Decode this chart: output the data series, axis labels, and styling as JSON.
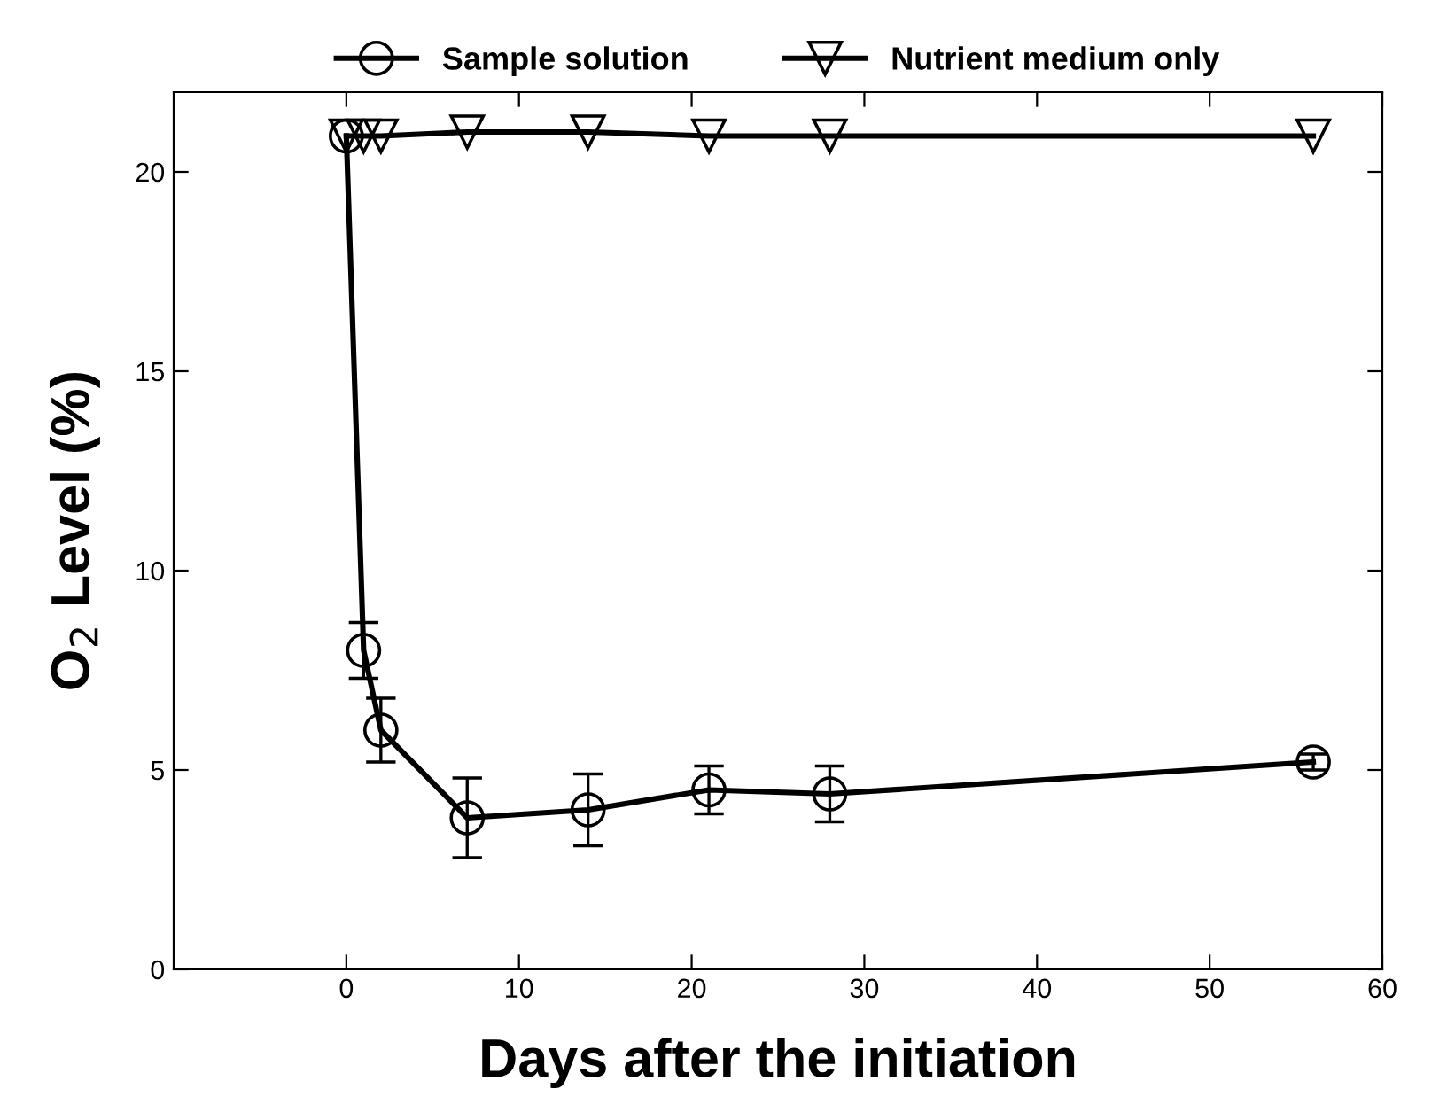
{
  "chart_data": {
    "type": "line",
    "xlabel": "Days after the initiation",
    "ylabel": "O$_{2}$ Level (%)",
    "xlim": [
      -10,
      60
    ],
    "xticks": [
      0,
      10,
      20,
      30,
      40,
      50,
      60
    ],
    "ylim": [
      0,
      22
    ],
    "yticks": [
      0,
      5,
      10,
      15,
      20
    ],
    "grid": false,
    "legend": "top",
    "line_style": "solid",
    "series": [
      {
        "name": "Sample solution",
        "color": "#000000",
        "marker": "circle",
        "x": [
          0,
          1,
          2,
          7,
          14,
          21,
          28,
          56
        ],
        "values": [
          20.9,
          8.0,
          6.0,
          3.8,
          4.0,
          4.5,
          4.4,
          5.2
        ],
        "errors": [
          null,
          0.7,
          0.8,
          1.0,
          0.9,
          0.6,
          0.7,
          0.2
        ]
      },
      {
        "name": "Nutrient medium only",
        "color": "#000000",
        "marker": "triangle",
        "x": [
          0,
          1,
          2,
          7,
          14,
          21,
          28,
          56
        ],
        "values": [
          20.9,
          20.9,
          20.9,
          21.0,
          21.0,
          20.9,
          20.9,
          20.9
        ]
      }
    ]
  }
}
